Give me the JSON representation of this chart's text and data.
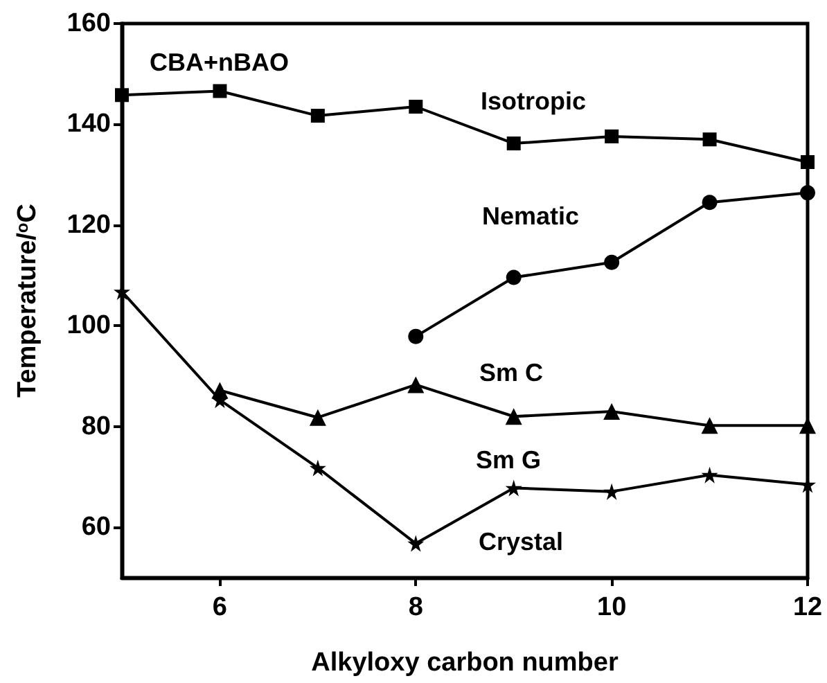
{
  "chart_data": {
    "type": "line",
    "xlabel": "Alkyloxy carbon number",
    "ylabel": "Temperature/$^{o}$C",
    "xlim": [
      5,
      12
    ],
    "xticks": [
      6,
      8,
      10,
      12
    ],
    "ylim": [
      50,
      160
    ],
    "yticks": [
      60,
      80,
      100,
      120,
      140,
      160
    ],
    "grid": false,
    "line_style": "solid",
    "series": [
      {
        "color": "#000000",
        "marker": "square",
        "x": [
          5,
          6,
          7,
          8,
          9,
          10,
          11,
          12
        ],
        "values": [
          145.8,
          146.6,
          141.7,
          143.5,
          136.2,
          137.6,
          137,
          132.5
        ]
      },
      {
        "color": "#000000",
        "marker": "circle",
        "x": [
          8,
          9,
          10,
          11,
          12
        ],
        "values": [
          97.9,
          109.6,
          112.6,
          124.5,
          126.4
        ]
      },
      {
        "color": "#000000",
        "marker": "triangle",
        "x": [
          6,
          7,
          8,
          9,
          10,
          11,
          12
        ],
        "values": [
          87.2,
          81.8,
          88.3,
          82,
          83,
          80.2,
          80.2
        ]
      },
      {
        "color": "#000000",
        "marker": "star",
        "x": [
          5,
          6,
          7,
          8,
          9,
          10,
          11,
          12
        ],
        "values": [
          106.8,
          85.3,
          71.8,
          56.8,
          67.8,
          67.1,
          70.4,
          68.5
        ]
      }
    ],
    "annotations": [
      "CBA+nBAO",
      "Isotropic",
      "Nematic",
      "Sm C",
      "Sm G",
      "Crystal"
    ]
  }
}
